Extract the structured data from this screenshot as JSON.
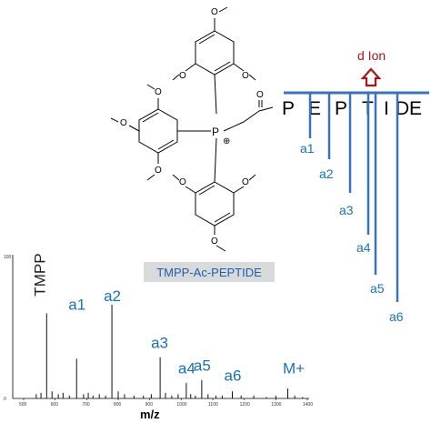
{
  "molecule": {
    "methoxy": "O",
    "phosphorus": "P",
    "charge": "⊕",
    "carbonyl_oxygen": "O"
  },
  "label_box": {
    "text": "TMPP-Ac-PEPTIDE"
  },
  "sequence": {
    "letters": [
      "P",
      "E",
      "P",
      "T",
      "I",
      "D",
      "E"
    ],
    "highlight_index": 4,
    "fragments": [
      "a1",
      "a2",
      "a3",
      "a4",
      "a5",
      "a6"
    ],
    "d_ion_label": "d Ion",
    "d_ion_color": "#a3171c",
    "bar_color": "#3a73b8"
  },
  "chart_data": {
    "type": "bar",
    "xlabel": "m/z",
    "ylabel": "",
    "x_ticks": [
      "500",
      "600",
      "700",
      "800",
      "900",
      "1000",
      "1100",
      "1200",
      "1300",
      "1400"
    ],
    "y_ticks": [
      "0",
      "100"
    ],
    "xlim": [
      500,
      1400
    ],
    "ylim": [
      0,
      100
    ],
    "peak_labels": [
      {
        "text": "TMPP",
        "x": 573,
        "y": 72,
        "rotated": true
      },
      {
        "text": "a1",
        "x": 668,
        "y": 60
      },
      {
        "text": "a2",
        "x": 780,
        "y": 66
      },
      {
        "text": "a3",
        "x": 930,
        "y": 33
      },
      {
        "text": "a4",
        "x": 1016,
        "y": 15
      },
      {
        "text": "a5",
        "x": 1065,
        "y": 17
      },
      {
        "text": "a6",
        "x": 1162,
        "y": 10
      },
      {
        "text": "M+",
        "x": 1348,
        "y": 15
      }
    ],
    "peaks": [
      {
        "x": 573,
        "y": 60
      },
      {
        "x": 668,
        "y": 28
      },
      {
        "x": 780,
        "y": 66
      },
      {
        "x": 933,
        "y": 29
      },
      {
        "x": 1016,
        "y": 11
      },
      {
        "x": 1065,
        "y": 13
      },
      {
        "x": 1162,
        "y": 5
      },
      {
        "x": 1338,
        "y": 7
      },
      {
        "x": 540,
        "y": 3
      },
      {
        "x": 555,
        "y": 4
      },
      {
        "x": 590,
        "y": 5
      },
      {
        "x": 610,
        "y": 3
      },
      {
        "x": 625,
        "y": 4
      },
      {
        "x": 645,
        "y": 2
      },
      {
        "x": 690,
        "y": 3
      },
      {
        "x": 705,
        "y": 4
      },
      {
        "x": 720,
        "y": 2
      },
      {
        "x": 740,
        "y": 3
      },
      {
        "x": 760,
        "y": 2
      },
      {
        "x": 800,
        "y": 5
      },
      {
        "x": 820,
        "y": 3
      },
      {
        "x": 850,
        "y": 2
      },
      {
        "x": 880,
        "y": 2
      },
      {
        "x": 905,
        "y": 3
      },
      {
        "x": 950,
        "y": 4
      },
      {
        "x": 970,
        "y": 2
      },
      {
        "x": 990,
        "y": 3
      },
      {
        "x": 1030,
        "y": 3
      },
      {
        "x": 1045,
        "y": 2
      },
      {
        "x": 1085,
        "y": 3
      },
      {
        "x": 1110,
        "y": 2
      },
      {
        "x": 1130,
        "y": 2
      },
      {
        "x": 1190,
        "y": 2
      },
      {
        "x": 1230,
        "y": 2
      },
      {
        "x": 1270,
        "y": 1
      },
      {
        "x": 1300,
        "y": 2
      },
      {
        "x": 1360,
        "y": 2
      },
      {
        "x": 1385,
        "y": 1
      }
    ]
  }
}
